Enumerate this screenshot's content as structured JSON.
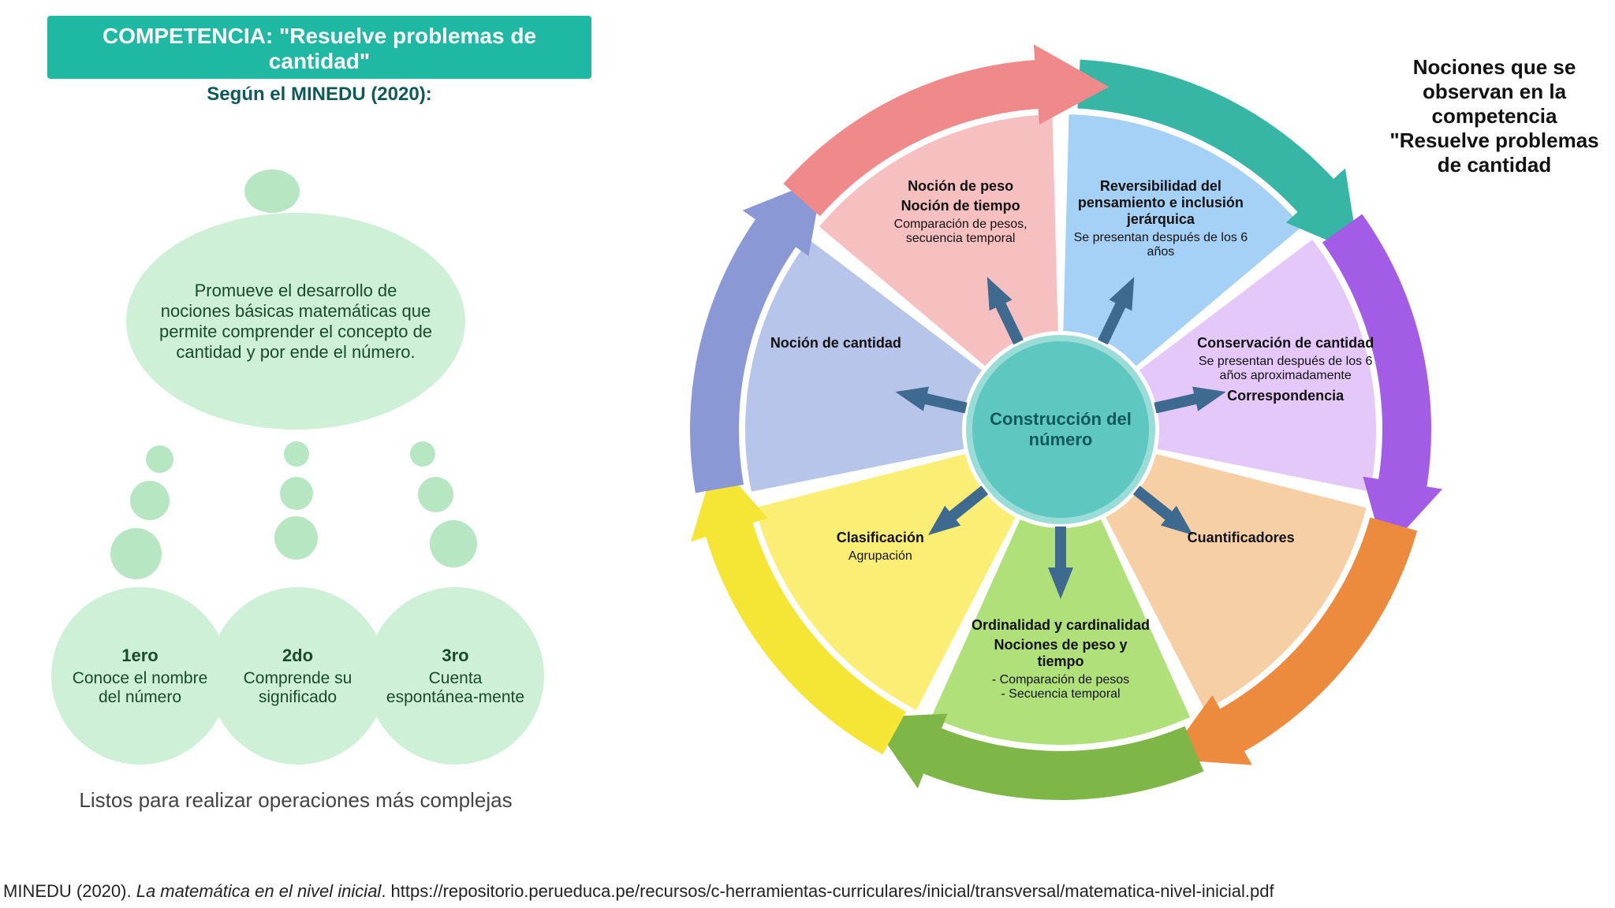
{
  "header": {
    "title_line1": "COMPETENCIA: \"Resuelve problemas de",
    "title_line2": "cantidad\"",
    "subtitle": "Según el MINEDU (2020):",
    "header_bg": "#1fb9a3",
    "header_text_color": "#ffffff",
    "subtitle_color": "#0e5a5a"
  },
  "left_bubble": {
    "main_text": "Promueve el desarrollo de nociones básicas matemáticas que permite comprender el concepto de cantidad y por ende el número.",
    "bubble_color": "#cdf0d6",
    "deco_color": "#b7e7c2",
    "items": [
      {
        "order": "1ero",
        "text": "Conoce el nombre del número"
      },
      {
        "order": "2do",
        "text": "Comprende su significado"
      },
      {
        "order": "3ro",
        "text": "Cuenta espontánea-mente"
      }
    ],
    "footer": "Listos para realizar operaciones más complejas"
  },
  "right_title": "Nociones que se observan en la competencia \"Resuelve problemas de cantidad",
  "wheel": {
    "center": "Construcción del número",
    "center_bg": "#5ec7c0",
    "arrow_color": "#3e6a8f",
    "segments": [
      {
        "angle_start": -90,
        "angle_end": -38.57,
        "slice_color": "#a4d1f5",
        "arrow_color": "#38b6a5",
        "title": "Reversibilidad del pensamiento e inclusión jerárquica",
        "sub": "Se presentan después de los 6 años"
      },
      {
        "angle_start": -38.57,
        "angle_end": 12.86,
        "slice_color": "#e5c8fa",
        "arrow_color": "#a25ce6",
        "title": "Conservación de cantidad",
        "sub": "Se presentan después de los 6 años aproximadamente",
        "extra": "Correspondencia"
      },
      {
        "angle_start": 12.86,
        "angle_end": 64.29,
        "slice_color": "#f6cfa5",
        "arrow_color": "#ec8b3e",
        "title": "Cuantificadores",
        "sub": ""
      },
      {
        "angle_start": 64.29,
        "angle_end": 115.71,
        "slice_color": "#b0e07a",
        "arrow_color": "#7eb648",
        "title": "Ordinalidad y cardinalidad",
        "sub2": "Nociones de peso y tiempo",
        "sub3": "- Comparación de pesos",
        "sub4": "- Secuencia temporal"
      },
      {
        "angle_start": 115.71,
        "angle_end": 167.14,
        "slice_color": "#fbee74",
        "arrow_color": "#f5e636",
        "title": "Clasificación",
        "sub": "Agrupación"
      },
      {
        "angle_start": 167.14,
        "angle_end": 218.57,
        "slice_color": "#b7c5ea",
        "arrow_color": "#8a99d6",
        "title": "Noción de cantidad",
        "sub": ""
      },
      {
        "angle_start": 218.57,
        "angle_end": 270,
        "slice_color": "#f7c0c0",
        "arrow_color": "#f08a8a",
        "title": "Noción de peso",
        "sub2": "Noción de tiempo",
        "sub3": "Comparación de pesos, secuencia temporal"
      }
    ]
  },
  "citation": {
    "prefix": "MINEDU (2020). ",
    "italic": "La matemática en el nivel inicial",
    "rest": ". https://repositorio.perueduca.pe/recursos/c-herramientas-curriculares/inicial/transversal/matematica-nivel-inicial.pdf"
  }
}
